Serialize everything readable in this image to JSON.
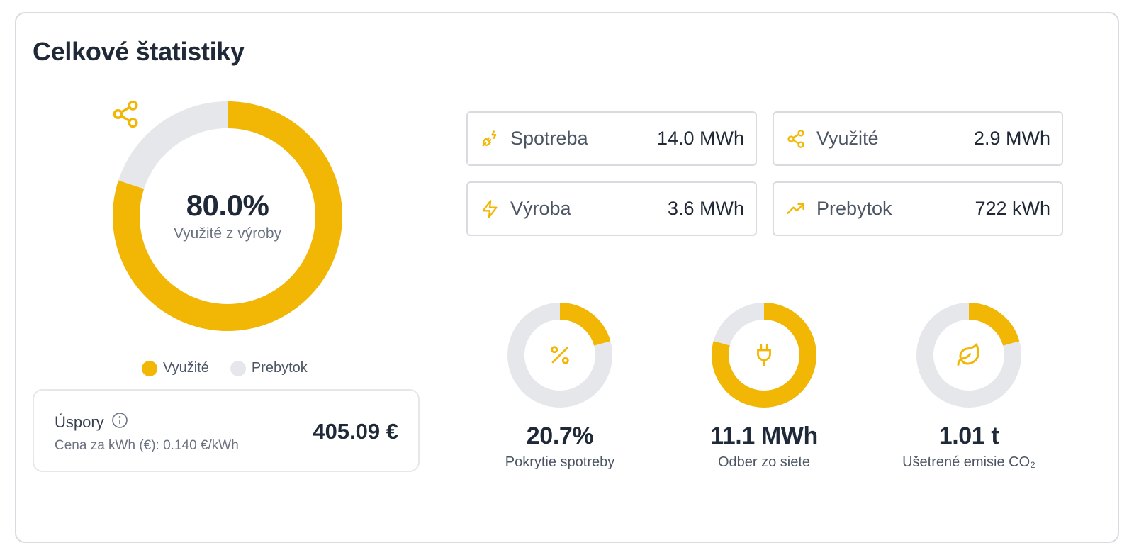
{
  "colors": {
    "accent": "#f2b705",
    "track": "#e5e7eb"
  },
  "title": "Celkové štatistiky",
  "main_donut": {
    "icon": "share-icon",
    "percent_label": "80.0%",
    "percent_value": 80.0,
    "subtitle": "Využité z výroby"
  },
  "legend": [
    {
      "label": "Využité",
      "color": "#f2b705"
    },
    {
      "label": "Prebytok",
      "color": "#e5e7eb"
    }
  ],
  "savings": {
    "title": "Úspory",
    "info_icon": "info-icon",
    "price_line": "Cena za kWh (€): 0.140 €/kWh",
    "value": "405.09 €"
  },
  "stats": [
    {
      "icon": "plug-bolt-icon",
      "label": "Spotreba",
      "value": "14.0 MWh"
    },
    {
      "icon": "share-icon",
      "label": "Využité",
      "value": "2.9 MWh"
    },
    {
      "icon": "bolt-icon",
      "label": "Výroba",
      "value": "3.6 MWh"
    },
    {
      "icon": "trending-up-icon",
      "label": "Prebytok",
      "value": "722 kWh"
    }
  ],
  "mini_donuts": [
    {
      "icon": "percent-icon",
      "value": "20.7%",
      "label": "Pokrytie spotreby",
      "fraction": 0.207
    },
    {
      "icon": "plug-icon",
      "value": "11.1 MWh",
      "label": "Odber zo siete",
      "fraction": 0.793
    },
    {
      "icon": "leaf-icon",
      "value": "1.01 t",
      "label": "Ušetrené emisie CO₂",
      "fraction": 0.207
    }
  ]
}
